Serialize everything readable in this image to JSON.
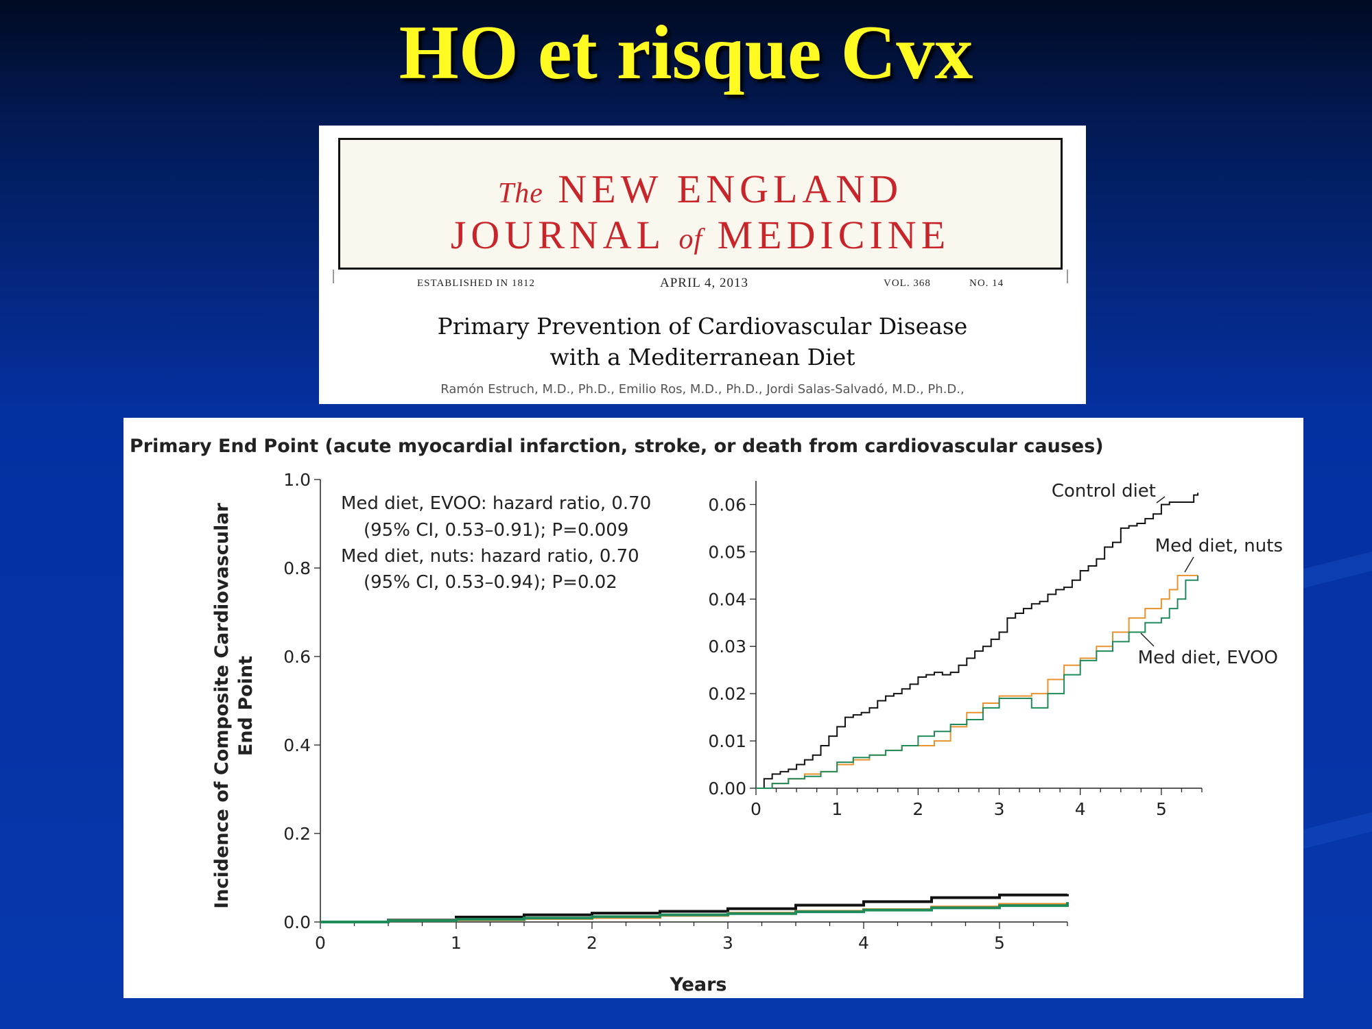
{
  "slide": {
    "title": "HO et risque Cvx"
  },
  "journal": {
    "the": "The",
    "name_line1": "NEW ENGLAND",
    "name_line2a": "JOURNAL",
    "of": "of",
    "name_line2b": "MEDICINE",
    "established": "ESTABLISHED IN 1812",
    "date": "APRIL 4, 2013",
    "volume": "VOL. 368",
    "number": "NO. 14",
    "article_title_line1": "Primary Prevention of Cardiovascular Disease",
    "article_title_line2": "with a Mediterranean Diet",
    "authors": "Ramón Estruch, M.D., Ph.D., Emilio Ros, M.D., Ph.D., Jordi Salas-Salvadó, M.D., Ph.D.,"
  },
  "chart_data": [
    {
      "type": "line",
      "role": "main",
      "title": "Primary End Point (acute myocardial infarction, stroke, or death from cardiovascular causes)",
      "xlabel": "Years",
      "ylabel": [
        "Incidence of Composite Cardiovascular",
        "End Point"
      ],
      "xlim": [
        0,
        5.5
      ],
      "ylim": [
        0,
        1.0
      ],
      "x_ticks": [
        "0",
        "1",
        "2",
        "3",
        "4",
        "5"
      ],
      "y_ticks": [
        "0.0",
        "0.2",
        "0.4",
        "0.6",
        "0.8",
        "1.0"
      ],
      "annotations": [
        "Med diet, EVOO: hazard ratio, 0.70",
        "(95% CI, 0.53–0.91); P=0.009",
        "Med diet, nuts: hazard ratio, 0.70",
        "(95% CI, 0.53–0.94);  P=0.02"
      ],
      "series": [
        {
          "color": "#111111",
          "x": [
            0,
            0.5,
            1,
            1.5,
            2,
            2.5,
            3,
            3.5,
            4,
            4.5,
            5,
            5.5
          ],
          "y": [
            0,
            0.004,
            0.011,
            0.016,
            0.02,
            0.024,
            0.03,
            0.038,
            0.046,
            0.055,
            0.061,
            0.063
          ]
        },
        {
          "color": "#e8922e",
          "x": [
            0,
            0.5,
            1,
            1.5,
            2,
            2.5,
            3,
            3.5,
            4,
            4.5,
            5,
            5.5
          ],
          "y": [
            0,
            0.003,
            0.005,
            0.008,
            0.01,
            0.015,
            0.02,
            0.024,
            0.028,
            0.034,
            0.04,
            0.045
          ]
        },
        {
          "color": "#1f8a5a",
          "x": [
            0,
            0.5,
            1,
            1.5,
            2,
            2.5,
            3,
            3.5,
            4,
            4.5,
            5,
            5.5
          ],
          "y": [
            0,
            0.003,
            0.006,
            0.009,
            0.012,
            0.016,
            0.019,
            0.023,
            0.027,
            0.032,
            0.037,
            0.045
          ]
        }
      ]
    },
    {
      "type": "line",
      "role": "inset",
      "xlim": [
        0,
        5.5
      ],
      "ylim": [
        0,
        0.065
      ],
      "x_ticks": [
        "0",
        "1",
        "2",
        "3",
        "4",
        "5"
      ],
      "y_ticks": [
        "0.00",
        "0.01",
        "0.02",
        "0.03",
        "0.04",
        "0.05",
        "0.06"
      ],
      "series": [
        {
          "name": "Control diet",
          "color": "#111111",
          "x": [
            0,
            0.1,
            0.2,
            0.3,
            0.4,
            0.5,
            0.6,
            0.7,
            0.8,
            0.9,
            1,
            1.1,
            1.2,
            1.3,
            1.4,
            1.5,
            1.6,
            1.7,
            1.8,
            1.9,
            2,
            2.1,
            2.2,
            2.3,
            2.4,
            2.5,
            2.6,
            2.7,
            2.8,
            2.9,
            3,
            3.1,
            3.2,
            3.3,
            3.4,
            3.5,
            3.6,
            3.7,
            3.8,
            3.9,
            4,
            4.1,
            4.2,
            4.3,
            4.4,
            4.5,
            4.6,
            4.7,
            4.8,
            4.9,
            5,
            5.1,
            5.2,
            5.3,
            5.4,
            5.45
          ],
          "y": [
            0,
            0.002,
            0.003,
            0.0035,
            0.004,
            0.005,
            0.006,
            0.007,
            0.009,
            0.011,
            0.013,
            0.015,
            0.0155,
            0.016,
            0.017,
            0.0185,
            0.0195,
            0.02,
            0.021,
            0.022,
            0.0235,
            0.024,
            0.0245,
            0.024,
            0.0245,
            0.026,
            0.0275,
            0.029,
            0.03,
            0.0315,
            0.033,
            0.036,
            0.037,
            0.038,
            0.039,
            0.0395,
            0.041,
            0.042,
            0.0425,
            0.044,
            0.046,
            0.047,
            0.0485,
            0.051,
            0.052,
            0.055,
            0.0555,
            0.056,
            0.057,
            0.058,
            0.06,
            0.0605,
            0.0605,
            0.0605,
            0.062,
            0.0625
          ]
        },
        {
          "name": "Med diet, nuts",
          "color": "#e8922e",
          "x": [
            0,
            0.2,
            0.4,
            0.6,
            0.8,
            1,
            1.2,
            1.4,
            1.6,
            1.8,
            2,
            2.2,
            2.4,
            2.6,
            2.8,
            3,
            3.2,
            3.4,
            3.6,
            3.8,
            4,
            4.2,
            4.4,
            4.6,
            4.8,
            5,
            5.1,
            5.2,
            5.3,
            5.45
          ],
          "y": [
            0,
            0.001,
            0.002,
            0.003,
            0.0035,
            0.005,
            0.006,
            0.007,
            0.008,
            0.009,
            0.009,
            0.01,
            0.013,
            0.016,
            0.018,
            0.0195,
            0.0195,
            0.02,
            0.023,
            0.026,
            0.0275,
            0.03,
            0.033,
            0.036,
            0.038,
            0.04,
            0.042,
            0.045,
            0.045,
            0.045
          ]
        },
        {
          "name": "Med diet, EVOO",
          "color": "#1f8a5a",
          "x": [
            0,
            0.2,
            0.4,
            0.6,
            0.8,
            1,
            1.2,
            1.4,
            1.6,
            1.8,
            2,
            2.2,
            2.4,
            2.6,
            2.8,
            3,
            3.2,
            3.4,
            3.6,
            3.8,
            4,
            4.2,
            4.4,
            4.6,
            4.8,
            5,
            5.1,
            5.2,
            5.3,
            5.45
          ],
          "y": [
            0,
            0.001,
            0.002,
            0.0025,
            0.0035,
            0.0055,
            0.0065,
            0.007,
            0.008,
            0.009,
            0.011,
            0.012,
            0.0135,
            0.0145,
            0.017,
            0.019,
            0.019,
            0.017,
            0.02,
            0.024,
            0.027,
            0.029,
            0.031,
            0.033,
            0.035,
            0.036,
            0.038,
            0.04,
            0.044,
            0.045
          ]
        }
      ]
    }
  ]
}
